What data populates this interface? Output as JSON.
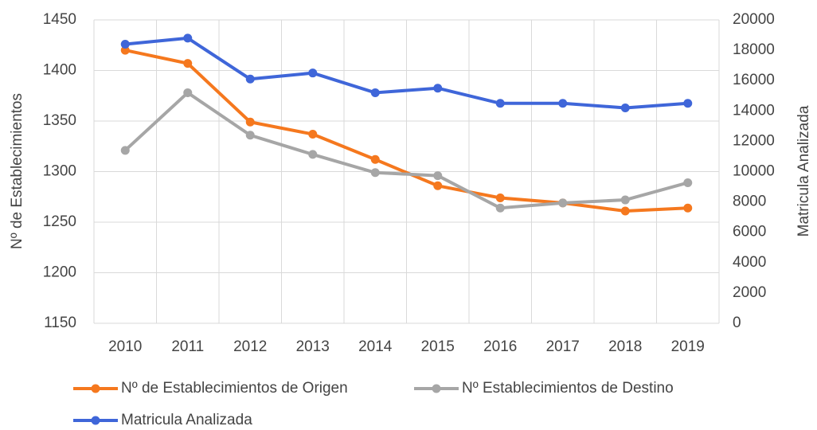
{
  "chart_data": {
    "type": "line",
    "categories": [
      "2010",
      "2011",
      "2012",
      "2013",
      "2014",
      "2015",
      "2016",
      "2017",
      "2018",
      "2019"
    ],
    "ylabel": "Nº de Establecimientos",
    "y2label": "Matricula Analizada",
    "ylim": [
      1150,
      1450
    ],
    "yticks": [
      1150,
      1200,
      1250,
      1300,
      1350,
      1400,
      1450
    ],
    "y2lim": [
      0,
      20000
    ],
    "y2ticks": [
      0,
      2000,
      4000,
      6000,
      8000,
      10000,
      12000,
      14000,
      16000,
      18000,
      20000
    ],
    "grid": true,
    "legend": "bottom",
    "series": [
      {
        "name": "Nº de Establecimientos de Origen",
        "color": "#f5781e",
        "values": [
          1420,
          1407,
          1349,
          1337,
          1312,
          1286,
          1274,
          1269,
          1261,
          1264
        ]
      },
      {
        "name": "Nº Establecimientos de Destino",
        "color": "#a6a6a6",
        "values": [
          1321,
          1378,
          1336,
          1317,
          1299,
          1296,
          1264,
          1269,
          1272,
          1289
        ]
      },
      {
        "name": "Matricula Analizada",
        "color": "#3f66d9",
        "axis": "y2",
        "values": [
          18400,
          18800,
          16100,
          16500,
          15200,
          15500,
          14500,
          14500,
          14200,
          14500
        ]
      }
    ]
  }
}
